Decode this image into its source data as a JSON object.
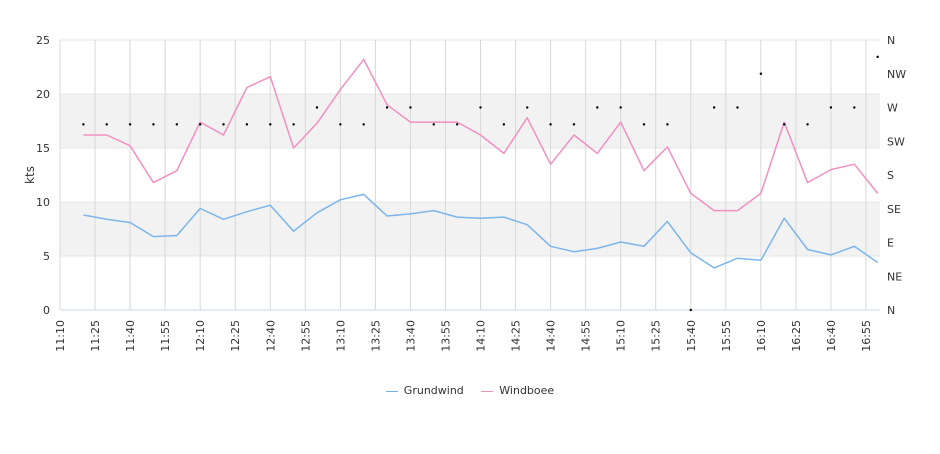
{
  "chart_data": {
    "type": "line",
    "ylabel": "kts",
    "ylim": [
      0,
      25
    ],
    "y_ticks": [
      "0",
      "5",
      "10",
      "15",
      "20",
      "25"
    ],
    "right_axis_labels": [
      "N",
      "NE",
      "E",
      "SE",
      "S",
      "SW",
      "W",
      "NW",
      "N"
    ],
    "x_range": [
      "11:10",
      "17:01"
    ],
    "x_ticks": [
      "11:10",
      "11:25",
      "11:40",
      "11:55",
      "12:10",
      "12:25",
      "12:40",
      "12:55",
      "13:10",
      "13:25",
      "13:40",
      "13:55",
      "14:10",
      "14:25",
      "14:40",
      "14:55",
      "15:10",
      "15:25",
      "15:40",
      "15:55",
      "16:10",
      "16:25",
      "16:40",
      "16:55"
    ],
    "bands": [
      [
        5,
        10
      ],
      [
        15,
        20
      ]
    ],
    "grid": true,
    "legend_position": "bottom",
    "x": [
      "11:20",
      "11:30",
      "11:40",
      "11:50",
      "12:00",
      "12:10",
      "12:20",
      "12:30",
      "12:40",
      "12:50",
      "13:00",
      "13:10",
      "13:20",
      "13:30",
      "13:40",
      "13:50",
      "14:00",
      "14:10",
      "14:20",
      "14:30",
      "14:40",
      "14:50",
      "15:00",
      "15:10",
      "15:20",
      "15:30",
      "15:40",
      "15:50",
      "16:00",
      "16:10",
      "16:20",
      "16:30",
      "16:40",
      "16:50",
      "17:00"
    ],
    "series": [
      {
        "name": "Grundwind",
        "color": "#7cb5ec",
        "values": [
          8.8,
          8.4,
          8.1,
          6.8,
          6.9,
          9.4,
          8.4,
          9.1,
          9.7,
          7.3,
          9.0,
          10.2,
          10.7,
          8.7,
          8.9,
          9.2,
          8.6,
          8.5,
          8.6,
          7.9,
          5.9,
          5.4,
          5.7,
          6.3,
          5.9,
          8.2,
          5.3,
          3.9,
          4.8,
          4.6,
          8.5,
          5.6,
          5.1,
          5.9,
          4.4
        ]
      },
      {
        "name": "Windboee",
        "color": "#f28fc3",
        "values": [
          16.2,
          16.2,
          15.2,
          11.8,
          12.9,
          17.4,
          16.2,
          20.6,
          21.6,
          15.0,
          17.3,
          20.4,
          23.2,
          19.0,
          17.4,
          17.4,
          17.4,
          16.2,
          14.5,
          17.8,
          13.5,
          16.2,
          14.5,
          17.4,
          12.9,
          15.1,
          10.8,
          9.2,
          9.2,
          10.8,
          17.4,
          11.8,
          13.0,
          13.5,
          10.8
        ]
      }
    ],
    "direction": {
      "x": [
        "11:20",
        "11:30",
        "11:40",
        "11:50",
        "12:00",
        "12:10",
        "12:20",
        "12:30",
        "12:40",
        "12:50",
        "13:00",
        "13:10",
        "13:20",
        "13:30",
        "13:40",
        "13:50",
        "14:00",
        "14:10",
        "14:20",
        "14:30",
        "14:40",
        "14:50",
        "15:00",
        "15:10",
        "15:20",
        "15:30",
        "15:40",
        "15:50",
        "16:00",
        "16:10",
        "16:20",
        "16:30",
        "16:40",
        "16:50",
        "17:00"
      ],
      "values": [
        "WSW",
        "WSW",
        "WSW",
        "WSW",
        "WSW",
        "WSW",
        "WSW",
        "WSW",
        "WSW",
        "WSW",
        "W",
        "WSW",
        "WSW",
        "W",
        "W",
        "WSW",
        "WSW",
        "W",
        "WSW",
        "W",
        "WSW",
        "WSW",
        "W",
        "W",
        "WSW",
        "WSW",
        "N",
        "W",
        "W",
        "NW",
        "WSW",
        "WSW",
        "W",
        "W",
        "NNW"
      ]
    }
  },
  "legend": [
    {
      "label": "Grundwind",
      "color": "#7cb5ec"
    },
    {
      "label": "Windboee",
      "color": "#f28fc3"
    }
  ]
}
